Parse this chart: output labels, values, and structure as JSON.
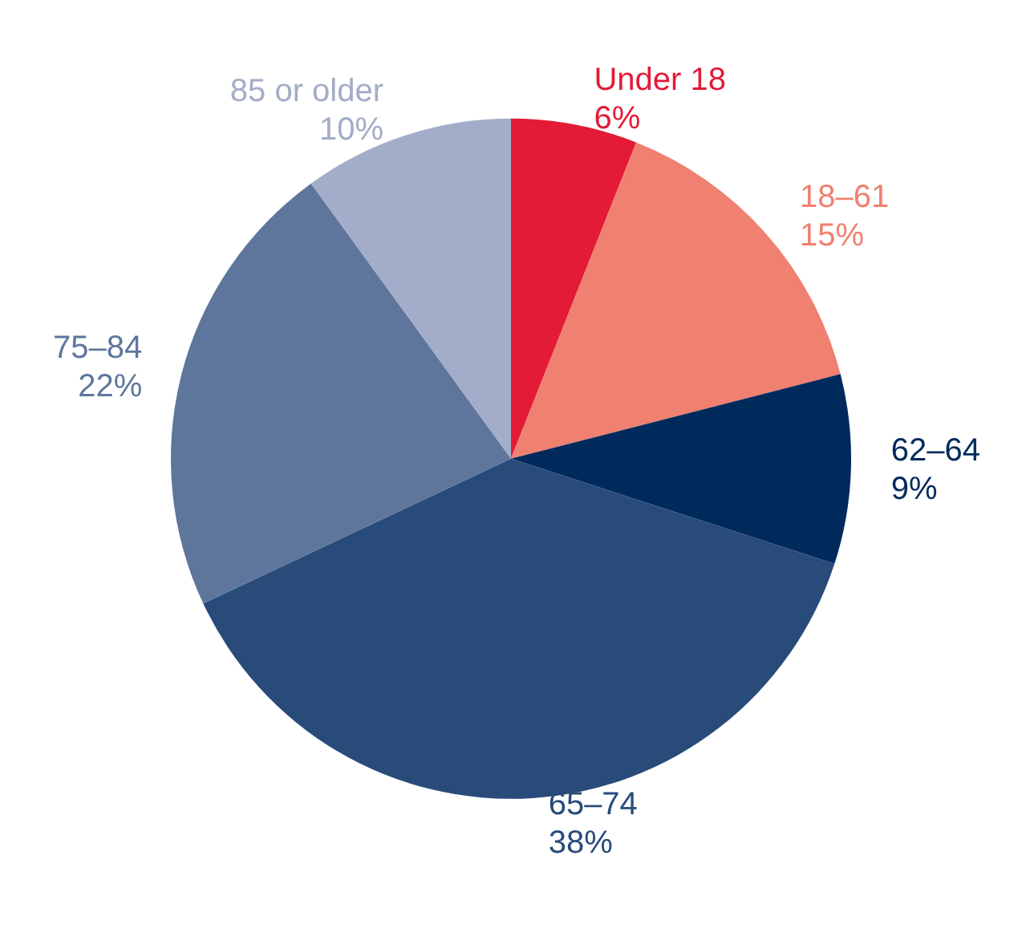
{
  "chart_data": {
    "type": "pie",
    "categories": [
      "Under 18",
      "18–61",
      "62–64",
      "65–74",
      "75–84",
      "85 or older"
    ],
    "values": [
      6,
      15,
      9,
      38,
      22,
      10
    ],
    "value_labels": [
      "6%",
      "15%",
      "9%",
      "38%",
      "22%",
      "10%"
    ],
    "colors": [
      "#e31b37",
      "#f08070",
      "#002a5c",
      "#284b7a",
      "#5e769c",
      "#a3acc8"
    ],
    "legend": false
  }
}
